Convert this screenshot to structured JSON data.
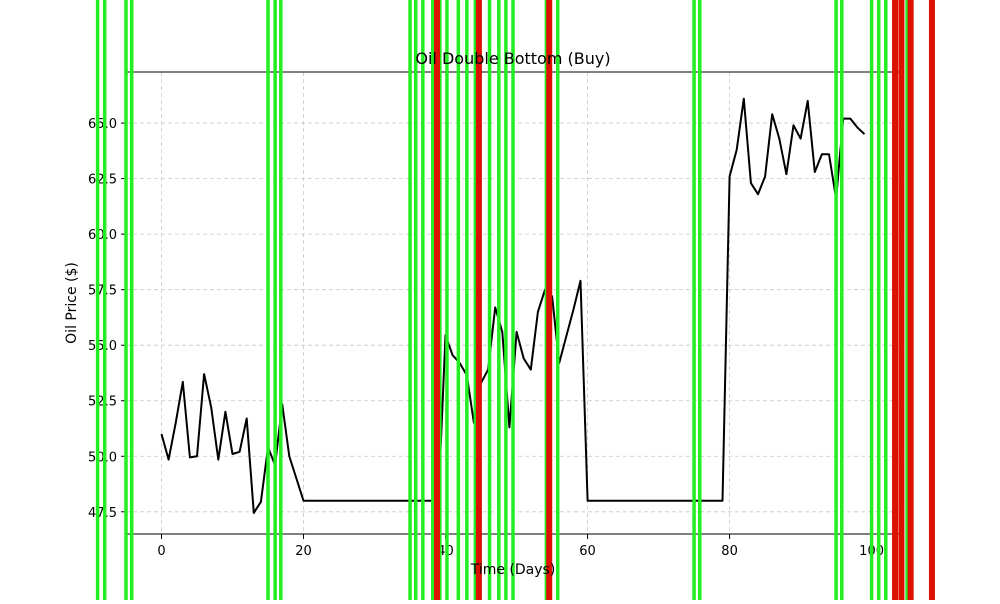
{
  "chart_data": {
    "type": "line",
    "title": "Oil Double Bottom (Buy)",
    "xlabel": "Time (Days)",
    "ylabel": "Oil Price ($)",
    "xlim": [
      -5,
      104
    ],
    "ylim": [
      46.5,
      67.3
    ],
    "grid": true,
    "x_ticks": [
      0,
      20,
      40,
      60,
      80,
      100
    ],
    "x_tick_labels": [
      "0",
      "20",
      "40",
      "60",
      "80",
      "100"
    ],
    "y_ticks": [
      47.5,
      50.0,
      52.5,
      55.0,
      57.5,
      60.0,
      62.5,
      65.0
    ],
    "y_tick_labels": [
      "47.5",
      "50.0",
      "52.5",
      "55.0",
      "57.5",
      "60.0",
      "62.5",
      "65.0"
    ],
    "series": [
      {
        "color": "#000000",
        "x": [
          0,
          1,
          2,
          3,
          4,
          5,
          6,
          7,
          8,
          9,
          10,
          11,
          12,
          13,
          14,
          15,
          16,
          17,
          18,
          19,
          20,
          21,
          22,
          23,
          24,
          25,
          26,
          27,
          28,
          29,
          30,
          31,
          32,
          33,
          34,
          35,
          36,
          37,
          38,
          39,
          40,
          41,
          42,
          43,
          44,
          45,
          46,
          47,
          48,
          49,
          50,
          51,
          52,
          53,
          54,
          55,
          56,
          57,
          58,
          59,
          60,
          61,
          62,
          63,
          64,
          65,
          66,
          67,
          68,
          69,
          70,
          71,
          72,
          73,
          74,
          75,
          76,
          77,
          78,
          79,
          80,
          81,
          82,
          83,
          84,
          85,
          86,
          87,
          88,
          89,
          90,
          91,
          92,
          93,
          94,
          95,
          96,
          97,
          98,
          99
        ],
        "y": [
          51.0,
          49.85,
          51.5,
          53.35,
          49.95,
          50.0,
          53.7,
          52.2,
          49.85,
          52.0,
          50.1,
          50.2,
          51.7,
          47.45,
          47.95,
          50.4,
          49.6,
          52.35,
          50.0,
          49.0,
          48.0,
          48.0,
          48.0,
          48.0,
          48.0,
          48.0,
          48.0,
          48.0,
          48.0,
          48.0,
          48.0,
          48.0,
          48.0,
          48.0,
          48.0,
          48.0,
          48.0,
          48.0,
          48.0,
          48.0,
          55.45,
          54.55,
          54.2,
          53.65,
          51.5,
          53.3,
          53.9,
          56.7,
          55.6,
          51.3,
          55.6,
          54.4,
          53.9,
          56.5,
          57.5,
          57.2,
          54.2,
          55.4,
          56.6,
          57.9,
          48.0,
          48.0,
          48.0,
          48.0,
          48.0,
          48.0,
          48.0,
          48.0,
          48.0,
          48.0,
          48.0,
          48.0,
          48.0,
          48.0,
          48.0,
          48.0,
          48.0,
          48.0,
          48.0,
          48.0,
          62.6,
          63.8,
          66.1,
          62.3,
          61.8,
          62.6,
          65.4,
          64.3,
          62.7,
          64.9,
          64.3,
          66.0,
          62.8,
          63.6,
          63.6,
          61.6,
          65.2,
          65.2,
          64.8,
          64.5
        ]
      }
    ],
    "buy_signals_x": [
      -9,
      -8,
      -5,
      -4.2,
      15,
      16,
      16.8,
      35,
      35.8,
      36.8,
      38.2,
      39.2,
      40.2,
      41.8,
      43,
      44.2,
      46.2,
      47.5,
      48.5,
      49.5,
      54.2,
      55.8,
      75,
      75.8,
      95,
      95.8,
      100,
      101,
      102,
      105
    ],
    "sell_signals_x": [
      38.8,
      44.7,
      54.6,
      103.3,
      104.2,
      105.5,
      108.5
    ],
    "buy_color": "#22ee22",
    "sell_color": "#dd1100"
  }
}
